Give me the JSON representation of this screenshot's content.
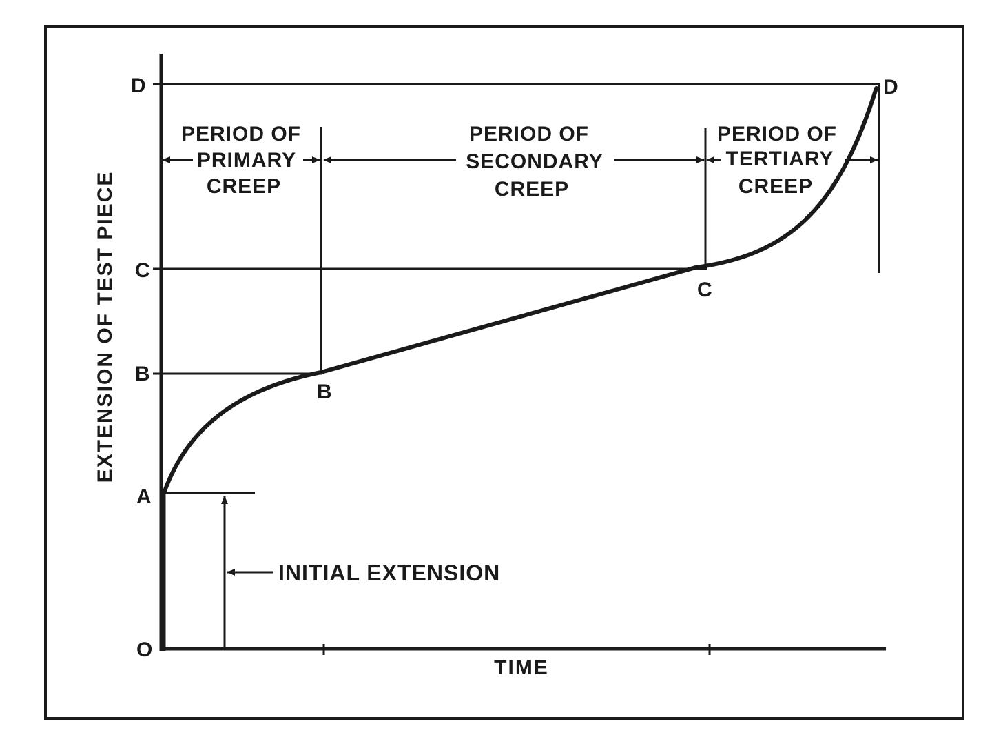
{
  "diagram": {
    "axis_labels": {
      "y_axis_title": "EXTENSION OF TEST PIECE",
      "x_axis_title": "TIME"
    },
    "y_levels": {
      "origin": "O",
      "a": "A",
      "b": "B",
      "c": "C",
      "d": "D"
    },
    "curve_points": {
      "b": "B",
      "c": "C",
      "d": "D"
    },
    "periods": {
      "primary": [
        "PERIOD OF",
        "PRIMARY",
        "CREEP"
      ],
      "secondary": [
        "PERIOD OF",
        "SECONDARY",
        "CREEP"
      ],
      "tertiary": [
        "PERIOD OF",
        "TERTIARY",
        "CREEP"
      ]
    },
    "annotation": "INITIAL EXTENSION"
  }
}
